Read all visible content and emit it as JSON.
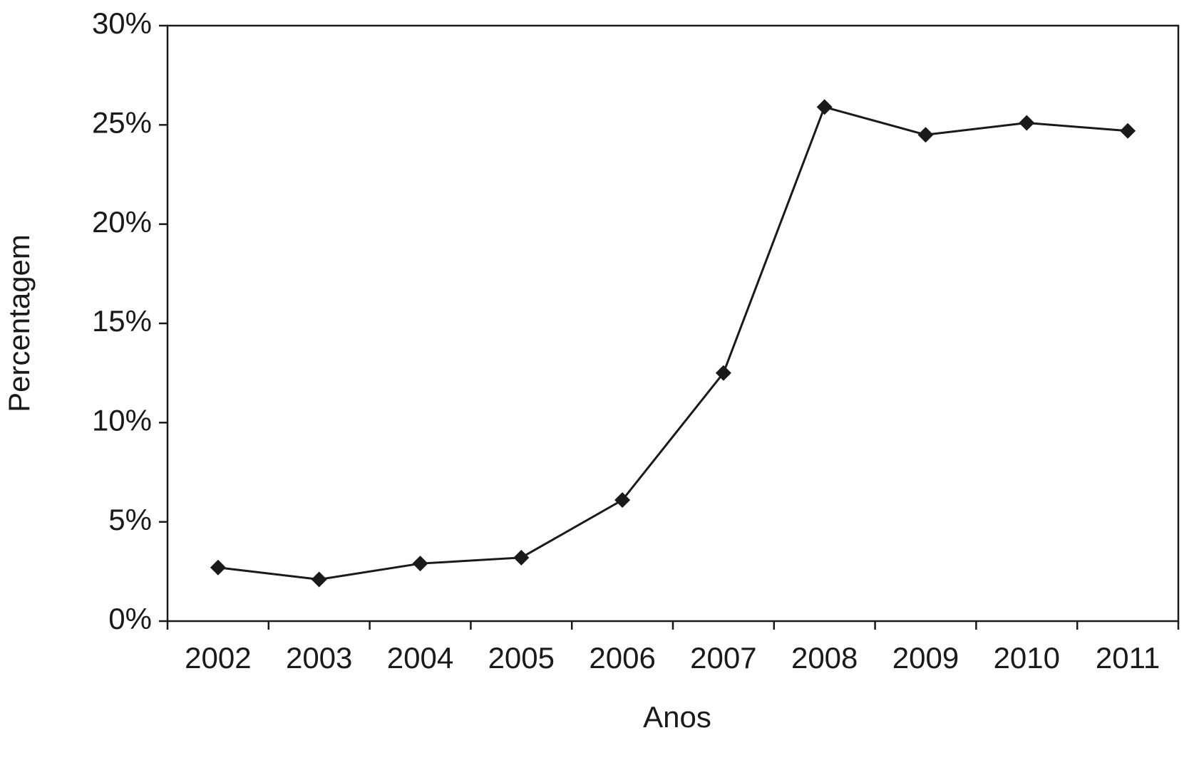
{
  "chart_data": {
    "type": "line",
    "x_label": "Anos",
    "y_label": "Percentagem",
    "categories": [
      "2002",
      "2003",
      "2004",
      "2005",
      "2006",
      "2007",
      "2008",
      "2009",
      "2010",
      "2011"
    ],
    "values": [
      2.7,
      2.1,
      2.9,
      3.2,
      6.1,
      12.5,
      25.9,
      24.5,
      25.1,
      24.7
    ],
    "color": "#1a1a1a",
    "ylim": [
      0,
      30
    ],
    "yticks": [
      {
        "value": 0,
        "label": "0%"
      },
      {
        "value": 5,
        "label": "5%"
      },
      {
        "value": 10,
        "label": "10%"
      },
      {
        "value": 15,
        "label": "15%"
      },
      {
        "value": 20,
        "label": "20%"
      },
      {
        "value": 25,
        "label": "25%"
      },
      {
        "value": 30,
        "label": "30%"
      }
    ],
    "grid": false
  }
}
